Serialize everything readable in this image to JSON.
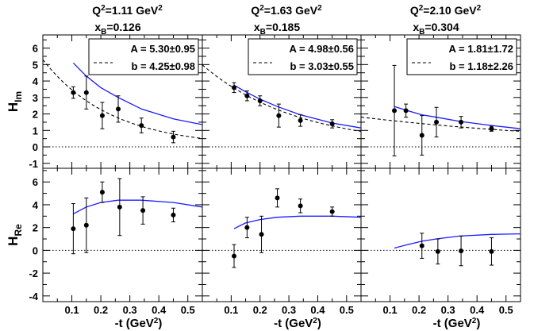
{
  "chart_data": {
    "type": "scatter",
    "xlabel": "-t (GeV²)",
    "x_ticks": [
      "0.1",
      "0.2",
      "0.3",
      "0.4",
      "0.5"
    ],
    "xlim": [
      0.0,
      0.55
    ],
    "rows": [
      {
        "ylabel_main": "H",
        "ylabel_sub": "Im",
        "ylim": [
          -1.3,
          6.8
        ],
        "y_ticks": [
          -1,
          0,
          1,
          2,
          3,
          4,
          5,
          6
        ]
      },
      {
        "ylabel_main": "H",
        "ylabel_sub": "Re",
        "ylim": [
          -4.5,
          7.2
        ],
        "y_ticks": [
          -4,
          -2,
          0,
          2,
          4,
          6
        ]
      }
    ],
    "columns": [
      {
        "q2_text": "Q²=1.11 GeV²",
        "xb_text": "x",
        "xb_sub": "B",
        "xb_value": "=0.126",
        "legend": {
          "a_text": "A = 5.30±0.95",
          "b_text": "b = 4.25±0.98"
        },
        "him": {
          "points": [
            {
              "x": 0.105,
              "y": 3.3,
              "err": 0.35
            },
            {
              "x": 0.15,
              "y": 3.3,
              "err": 1.0
            },
            {
              "x": 0.205,
              "y": 1.9,
              "err": 0.8
            },
            {
              "x": 0.26,
              "y": 2.3,
              "err": 0.8
            },
            {
              "x": 0.34,
              "y": 1.3,
              "err": 0.45
            },
            {
              "x": 0.45,
              "y": 0.6,
              "err": 0.35
            }
          ],
          "model_curve": [
            [
              0.105,
              5.1
            ],
            [
              0.15,
              4.3
            ],
            [
              0.2,
              3.6
            ],
            [
              0.26,
              3.0
            ],
            [
              0.34,
              2.3
            ],
            [
              0.45,
              1.7
            ],
            [
              0.55,
              1.35
            ]
          ],
          "fit": {
            "A": 5.3,
            "b": 4.25
          }
        },
        "hre": {
          "points": [
            {
              "x": 0.105,
              "y": 1.9,
              "err": 2.2
            },
            {
              "x": 0.15,
              "y": 2.2,
              "err": 2.4
            },
            {
              "x": 0.205,
              "y": 5.1,
              "err": 0.9
            },
            {
              "x": 0.265,
              "y": 3.8,
              "err": 2.5
            },
            {
              "x": 0.345,
              "y": 3.5,
              "err": 1.2
            },
            {
              "x": 0.45,
              "y": 3.1,
              "err": 0.6
            }
          ],
          "model_curve": [
            [
              0.105,
              3.2
            ],
            [
              0.15,
              3.8
            ],
            [
              0.2,
              4.2
            ],
            [
              0.26,
              4.4
            ],
            [
              0.34,
              4.4
            ],
            [
              0.45,
              4.2
            ],
            [
              0.55,
              3.8
            ]
          ]
        }
      },
      {
        "q2_text": "Q²=1.63 GeV²",
        "xb_text": "x",
        "xb_sub": "B",
        "xb_value": "=0.185",
        "legend": {
          "a_text": "A = 4.98±0.56",
          "b_text": "b = 3.03±0.55"
        },
        "him": {
          "points": [
            {
              "x": 0.11,
              "y": 3.6,
              "err": 0.3
            },
            {
              "x": 0.155,
              "y": 3.1,
              "err": 0.3
            },
            {
              "x": 0.2,
              "y": 2.8,
              "err": 0.3
            },
            {
              "x": 0.265,
              "y": 1.9,
              "err": 0.7
            },
            {
              "x": 0.34,
              "y": 1.6,
              "err": 0.35
            },
            {
              "x": 0.45,
              "y": 1.4,
              "err": 0.25
            }
          ],
          "model_curve": [
            [
              0.11,
              3.75
            ],
            [
              0.15,
              3.35
            ],
            [
              0.2,
              2.9
            ],
            [
              0.26,
              2.45
            ],
            [
              0.34,
              1.95
            ],
            [
              0.45,
              1.45
            ],
            [
              0.55,
              1.15
            ]
          ],
          "fit": {
            "A": 4.98,
            "b": 3.03
          }
        },
        "hre": {
          "points": [
            {
              "x": 0.11,
              "y": -0.5,
              "err": 1.0
            },
            {
              "x": 0.155,
              "y": 2.0,
              "err": 0.9
            },
            {
              "x": 0.205,
              "y": 1.4,
              "err": 1.6
            },
            {
              "x": 0.26,
              "y": 4.6,
              "err": 0.8
            },
            {
              "x": 0.34,
              "y": 3.9,
              "err": 0.6
            },
            {
              "x": 0.45,
              "y": 3.4,
              "err": 0.4
            }
          ],
          "model_curve": [
            [
              0.11,
              1.9
            ],
            [
              0.15,
              2.4
            ],
            [
              0.2,
              2.7
            ],
            [
              0.26,
              2.9
            ],
            [
              0.34,
              3.0
            ],
            [
              0.45,
              3.0
            ],
            [
              0.55,
              2.9
            ]
          ]
        }
      },
      {
        "q2_text": "Q²=2.10 GeV²",
        "xb_text": "x",
        "xb_sub": "B",
        "xb_value": "=0.304",
        "legend": {
          "a_text": "A = 1.81±1.72",
          "b_text": "b = 1.18±2.26"
        },
        "him": {
          "points": [
            {
              "x": 0.115,
              "y": 2.2,
              "err": 2.75
            },
            {
              "x": 0.155,
              "y": 2.2,
              "err": 0.4
            },
            {
              "x": 0.21,
              "y": 0.7,
              "err": 1.2
            },
            {
              "x": 0.26,
              "y": 1.5,
              "err": 0.9
            },
            {
              "x": 0.345,
              "y": 1.5,
              "err": 0.35
            },
            {
              "x": 0.45,
              "y": 1.1,
              "err": 0.15
            }
          ],
          "model_curve": [
            [
              0.115,
              2.45
            ],
            [
              0.16,
              2.2
            ],
            [
              0.21,
              1.95
            ],
            [
              0.26,
              1.8
            ],
            [
              0.34,
              1.55
            ],
            [
              0.45,
              1.3
            ],
            [
              0.55,
              1.1
            ]
          ],
          "fit": {
            "A": 1.81,
            "b": 1.18
          }
        },
        "hre": {
          "points": [
            {
              "x": 0.21,
              "y": 0.4,
              "err": 1.1
            },
            {
              "x": 0.265,
              "y": -0.1,
              "err": 1.1
            },
            {
              "x": 0.345,
              "y": -0.05,
              "err": 1.3
            },
            {
              "x": 0.45,
              "y": -0.1,
              "err": 1.2
            }
          ],
          "model_curve": [
            [
              0.115,
              0.2
            ],
            [
              0.16,
              0.5
            ],
            [
              0.21,
              0.8
            ],
            [
              0.26,
              1.0
            ],
            [
              0.34,
              1.25
            ],
            [
              0.45,
              1.4
            ],
            [
              0.55,
              1.45
            ]
          ]
        }
      }
    ],
    "colors": {
      "model": "#1a1aff",
      "points": "#000000",
      "fit": "#000000",
      "zero_line": "#000000"
    }
  }
}
